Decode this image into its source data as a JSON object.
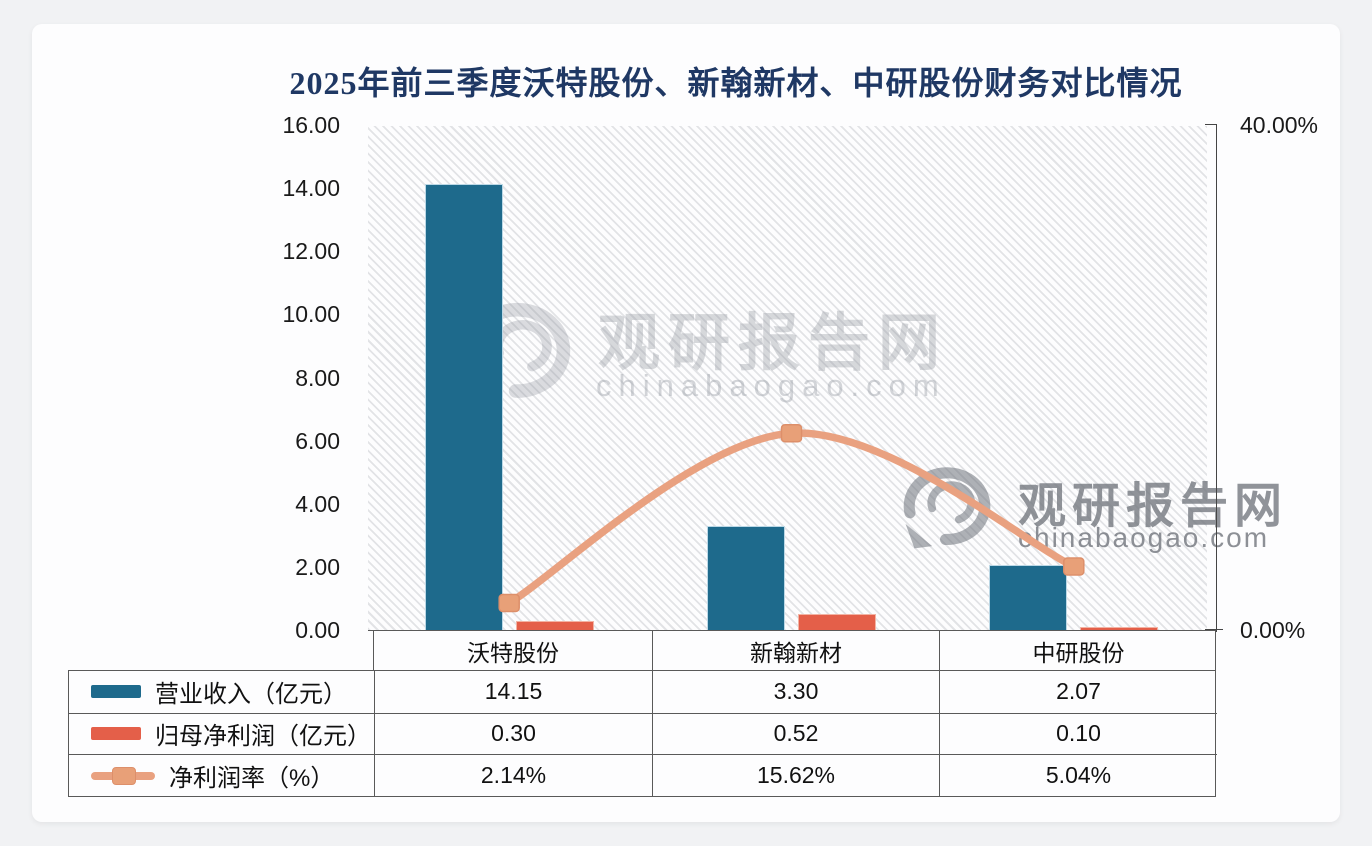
{
  "title": "2025年前三季度沃特股份、新翰新材、中研股份财务对比情况",
  "watermark": {
    "brand": "观研报告网",
    "domain": "chinabaogao.com",
    "logo": "swirl-eye-logo"
  },
  "chart_data": {
    "type": "bar",
    "subtype": "clustered-bars-with-smooth-line",
    "title": "2025年前三季度沃特股份、新翰新材、中研股份财务对比情况",
    "categories": [
      "沃特股份",
      "新翰新材",
      "中研股份"
    ],
    "series": [
      {
        "name": "营业收入（亿元）",
        "type": "bar",
        "axis": "left",
        "color": "#1e6a8c",
        "values": [
          14.15,
          3.3,
          2.07
        ],
        "labels": [
          "14.15",
          "3.30",
          "2.07"
        ]
      },
      {
        "name": "归母净利润（亿元）",
        "type": "bar",
        "axis": "left",
        "color": "#e45f49",
        "values": [
          0.3,
          0.52,
          0.1
        ],
        "labels": [
          "0.30",
          "0.52",
          "0.10"
        ]
      },
      {
        "name": "净利润率（%）",
        "type": "line",
        "axis": "right",
        "color": "#e9a180",
        "marker": "square",
        "marker_border": "#dd8f6a",
        "values": [
          2.14,
          15.62,
          5.04
        ],
        "labels": [
          "2.14%",
          "15.62%",
          "5.04%"
        ]
      }
    ],
    "left_axis": {
      "min": 0,
      "max": 16,
      "step": 2,
      "ticks": [
        "16.00",
        "14.00",
        "12.00",
        "10.00",
        "8.00",
        "6.00",
        "4.00",
        "2.00",
        "0.00"
      ]
    },
    "right_axis": {
      "min": 0,
      "max": 40,
      "ticks": [
        "40.00%",
        "0.00%"
      ]
    },
    "grid": "none (hatched diagonal-stripe plot background)",
    "legend_position": "table rows below chart"
  },
  "style": {
    "title_color": "#1f3864",
    "table_border_color": "#595959",
    "axis_text_color": "#1a1a1a",
    "hatch_color": "#e2e3e6",
    "card_background": "#fdfdfe",
    "page_background": "#f1f2f4"
  }
}
